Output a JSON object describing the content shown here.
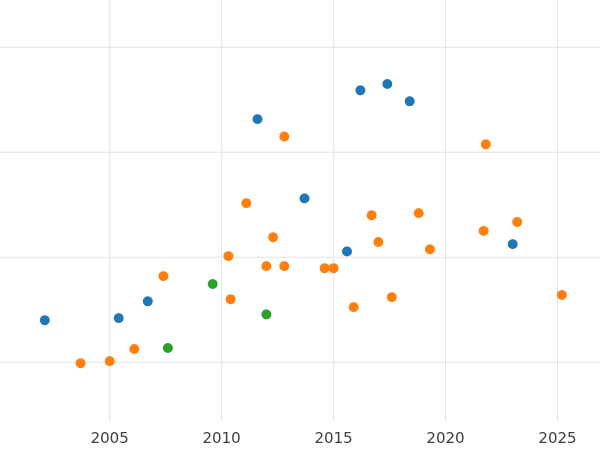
{
  "chart_data": {
    "type": "scatter",
    "title": "",
    "xlabel": "",
    "ylabel": "",
    "grid": true,
    "legend_position": "none",
    "x_ticks": [
      2005,
      2010,
      2015,
      2020,
      2025
    ],
    "x_tick_labels": [
      "2005",
      "2010",
      "2015",
      "2020",
      "2025"
    ],
    "y_gridlines": [
      20,
      40,
      60,
      80
    ],
    "xlim": [
      2000.1,
      2026.9
    ],
    "ylim": [
      8.6,
      89.0
    ],
    "marker_radius": 5,
    "colors": {
      "background": "#ffffff",
      "gridline": "#e3e3e3",
      "tick_label": "#3d3d3d"
    },
    "series": [
      {
        "name": "series-blue",
        "color": "#1f77b4",
        "points": [
          [
            2002.1,
            28.0
          ],
          [
            2005.4,
            28.4
          ],
          [
            2006.7,
            31.6
          ],
          [
            2011.6,
            66.3
          ],
          [
            2013.7,
            51.2
          ],
          [
            2015.6,
            41.1
          ],
          [
            2016.2,
            71.8
          ],
          [
            2017.4,
            73.0
          ],
          [
            2018.4,
            69.7
          ],
          [
            2023.0,
            42.5
          ]
        ]
      },
      {
        "name": "series-orange",
        "color": "#ff7f0e",
        "points": [
          [
            2003.7,
            19.8
          ],
          [
            2005.0,
            20.2
          ],
          [
            2006.1,
            22.5
          ],
          [
            2007.4,
            36.4
          ],
          [
            2010.3,
            40.2
          ],
          [
            2010.4,
            32.0
          ],
          [
            2011.1,
            50.3
          ],
          [
            2012.0,
            38.3
          ],
          [
            2012.3,
            43.8
          ],
          [
            2012.8,
            38.3
          ],
          [
            2012.8,
            63.0
          ],
          [
            2014.6,
            37.9
          ],
          [
            2015.0,
            37.9
          ],
          [
            2015.9,
            30.5
          ],
          [
            2016.7,
            48.0
          ],
          [
            2017.0,
            42.9
          ],
          [
            2017.6,
            32.4
          ],
          [
            2018.8,
            48.4
          ],
          [
            2019.3,
            41.5
          ],
          [
            2021.7,
            45.0
          ],
          [
            2021.8,
            61.5
          ],
          [
            2023.2,
            46.7
          ],
          [
            2025.2,
            32.8
          ]
        ]
      },
      {
        "name": "series-green",
        "color": "#2ca02c",
        "points": [
          [
            2007.6,
            22.7
          ],
          [
            2009.6,
            34.9
          ],
          [
            2012.0,
            29.1
          ]
        ]
      }
    ]
  }
}
